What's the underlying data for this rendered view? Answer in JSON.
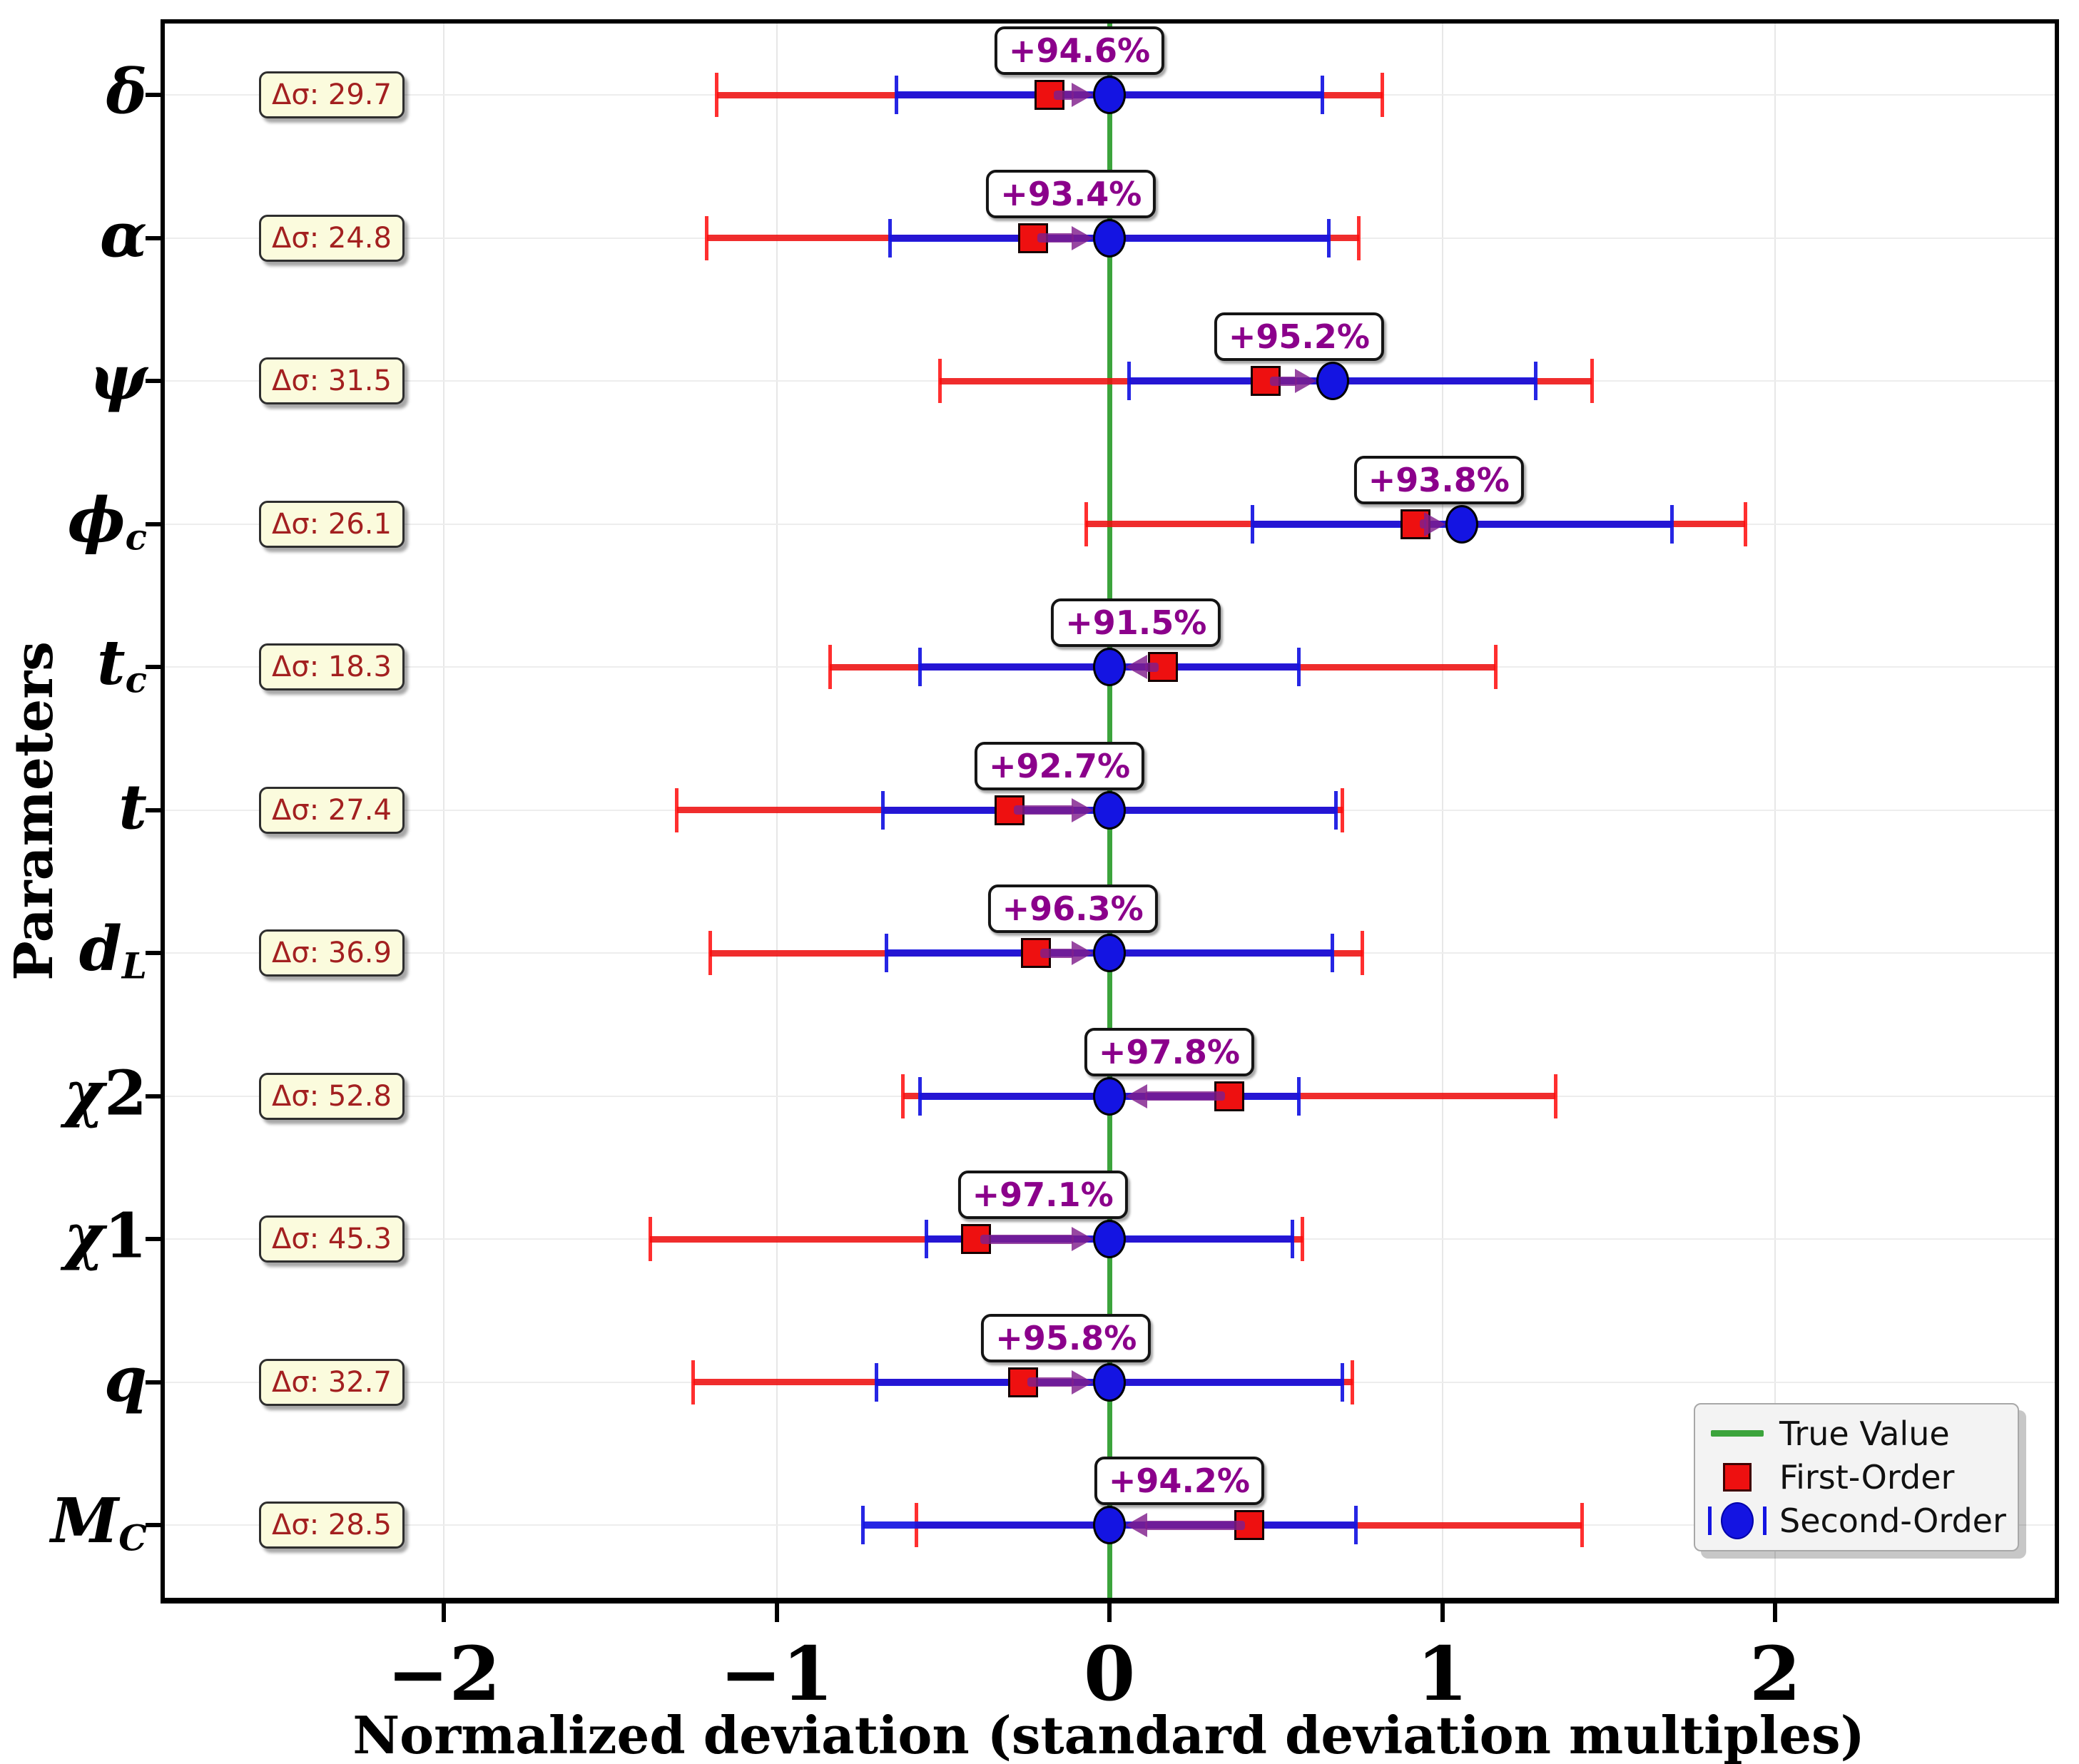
{
  "chart_data": {
    "type": "scatter",
    "subtype": "horizontal_errorbar_comparison",
    "title": "",
    "xlabel": "Normalized deviation (standard deviation multiples)",
    "ylabel": "Parameters",
    "xlim": [
      -2.85,
      2.85
    ],
    "grid": true,
    "true_value_x": 0,
    "xticks": [
      {
        "value": -2,
        "label": "−2"
      },
      {
        "value": -1,
        "label": "−1"
      },
      {
        "value": 0,
        "label": "0"
      },
      {
        "value": 1,
        "label": "1"
      },
      {
        "value": 2,
        "label": "2"
      }
    ],
    "legend": {
      "position": "lower-right",
      "items": [
        {
          "id": "true-value",
          "label": "True Value"
        },
        {
          "id": "first-order",
          "label": "First-Order"
        },
        {
          "id": "second-order",
          "label": "Second-Order"
        }
      ]
    },
    "rows": [
      {
        "param": {
          "main": "δ",
          "tail": "",
          "sub": ""
        },
        "delta_sigma": "Δσ: 29.7",
        "improvement": "+94.6%",
        "first_order": {
          "value": -0.18,
          "err": 1.0
        },
        "second_order": {
          "value": 0.0,
          "err": 0.64
        }
      },
      {
        "param": {
          "main": "α",
          "tail": "",
          "sub": ""
        },
        "delta_sigma": "Δσ: 24.8",
        "improvement": "+93.4%",
        "first_order": {
          "value": -0.23,
          "err": 0.98
        },
        "second_order": {
          "value": 0.0,
          "err": 0.66
        }
      },
      {
        "param": {
          "main": "ψ",
          "tail": "",
          "sub": ""
        },
        "delta_sigma": "Δσ: 31.5",
        "improvement": "+95.2%",
        "first_order": {
          "value": 0.47,
          "err": 0.98
        },
        "second_order": {
          "value": 0.67,
          "err": 0.61
        }
      },
      {
        "param": {
          "main": "ϕ",
          "tail": "",
          "sub": "c"
        },
        "delta_sigma": "Δσ: 26.1",
        "improvement": "+93.8%",
        "first_order": {
          "value": 0.92,
          "err": 0.99
        },
        "second_order": {
          "value": 1.06,
          "err": 0.63
        }
      },
      {
        "param": {
          "main": "t",
          "tail": "",
          "sub": "c"
        },
        "delta_sigma": "Δσ: 18.3",
        "improvement": "+91.5%",
        "first_order": {
          "value": 0.16,
          "err": 1.0
        },
        "second_order": {
          "value": 0.0,
          "err": 0.57
        }
      },
      {
        "param": {
          "main": "t",
          "tail": "",
          "sub": ""
        },
        "delta_sigma": "Δσ: 27.4",
        "improvement": "+92.7%",
        "first_order": {
          "value": -0.3,
          "err": 1.0
        },
        "second_order": {
          "value": 0.0,
          "err": 0.68
        }
      },
      {
        "param": {
          "main": "d",
          "tail": "",
          "sub": "L"
        },
        "delta_sigma": "Δσ: 36.9",
        "improvement": "+96.3%",
        "first_order": {
          "value": -0.22,
          "err": 0.98
        },
        "second_order": {
          "value": 0.0,
          "err": 0.67
        }
      },
      {
        "param": {
          "main": "χ",
          "tail": "2",
          "sub": ""
        },
        "delta_sigma": "Δσ: 52.8",
        "improvement": "+97.8%",
        "first_order": {
          "value": 0.36,
          "err": 0.98
        },
        "second_order": {
          "value": 0.0,
          "err": 0.57
        }
      },
      {
        "param": {
          "main": "χ",
          "tail": "1",
          "sub": ""
        },
        "delta_sigma": "Δσ: 45.3",
        "improvement": "+97.1%",
        "first_order": {
          "value": -0.4,
          "err": 0.98
        },
        "second_order": {
          "value": 0.0,
          "err": 0.55
        }
      },
      {
        "param": {
          "main": "q",
          "tail": "",
          "sub": ""
        },
        "delta_sigma": "Δσ: 32.7",
        "improvement": "+95.8%",
        "first_order": {
          "value": -0.26,
          "err": 0.99
        },
        "second_order": {
          "value": 0.0,
          "err": 0.7
        }
      },
      {
        "param": {
          "main": "M",
          "tail": "",
          "sub": "C"
        },
        "delta_sigma": "Δσ: 28.5",
        "improvement": "+94.2%",
        "first_order": {
          "value": 0.42,
          "err": 1.0
        },
        "second_order": {
          "value": 0.0,
          "err": 0.74
        }
      }
    ]
  },
  "colors": {
    "true_value": "#3ca43c",
    "first_order": "rgba(238,16,16,0.88)",
    "first_order_cap": "rgba(255,10,10,0.85)",
    "second_order": "rgba(20,20,226,0.92)",
    "arrow": "rgba(128,30,140,0.82)",
    "pct_text": "#8b008b",
    "delta_text": "#a32020",
    "delta_bg": "#fbfbdd",
    "grid": "#e7e7e7"
  }
}
